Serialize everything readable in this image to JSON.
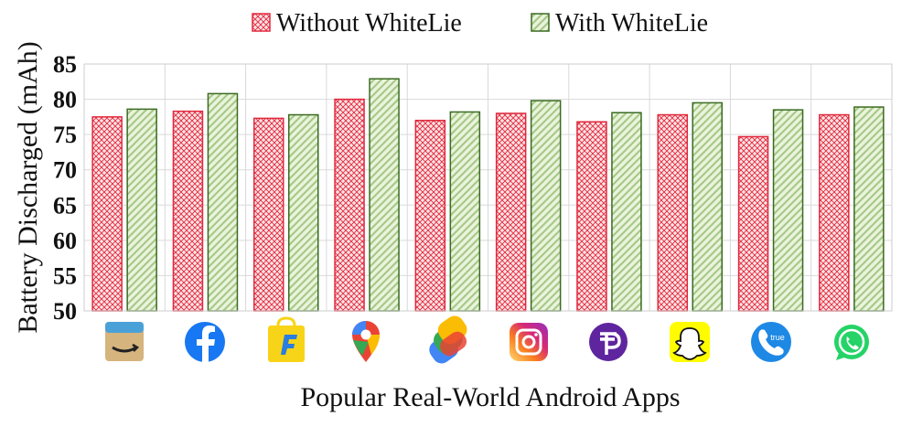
{
  "chart_data": {
    "type": "bar",
    "xlabel": "Popular Real-World Android Apps",
    "ylabel": "Battery Discharged (mAh)",
    "ylim": [
      50,
      85
    ],
    "yticks": [
      50,
      55,
      60,
      65,
      70,
      75,
      80,
      85
    ],
    "grid": true,
    "legend_position": "top",
    "categories": [
      "Amazon",
      "Facebook",
      "Flipkart",
      "Google Maps",
      "Google Pay",
      "Instagram",
      "PhonePe",
      "Snapchat",
      "Truecaller",
      "WhatsApp"
    ],
    "category_icons": [
      "amazon-icon",
      "facebook-icon",
      "flipkart-icon",
      "google-maps-icon",
      "google-pay-icon",
      "instagram-icon",
      "phonepe-icon",
      "snapchat-icon",
      "truecaller-icon",
      "whatsapp-icon"
    ],
    "icon_texts": {
      "truecaller": "true"
    },
    "series": [
      {
        "name": "Without WhiteLie",
        "values": [
          77.5,
          78.3,
          77.3,
          80.0,
          77.0,
          78.0,
          76.8,
          77.8,
          74.7,
          77.8
        ],
        "color": "#e0283c",
        "fill": "#fbd5d8",
        "pattern": "crosshatch"
      },
      {
        "name": "With WhiteLie",
        "values": [
          78.6,
          80.8,
          77.8,
          82.9,
          78.2,
          79.8,
          78.1,
          79.5,
          78.5,
          78.9
        ],
        "color": "#3a6b22",
        "fill": "#e3f0cf",
        "pattern": "diagonal"
      }
    ]
  }
}
